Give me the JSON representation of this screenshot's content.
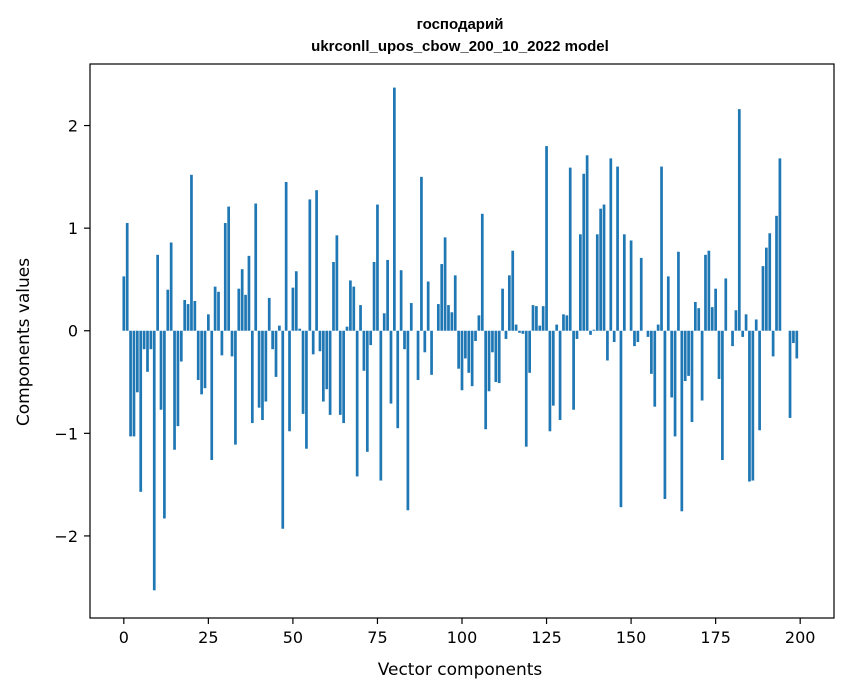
{
  "chart_data": {
    "type": "bar",
    "title_lines": [
      "господарий",
      "ukrconll_upos_cbow_200_10_2022 model"
    ],
    "xlabel": "Vector components",
    "ylabel": "Components values",
    "xlim": [
      -10,
      210
    ],
    "ylim": [
      -2.8,
      2.6
    ],
    "xticks": [
      0,
      25,
      50,
      75,
      100,
      125,
      150,
      175,
      200
    ],
    "xtick_labels": [
      "0",
      "25",
      "50",
      "75",
      "100",
      "125",
      "150",
      "175",
      "200"
    ],
    "yticks": [
      -2,
      -1,
      0,
      1,
      2
    ],
    "ytick_labels": [
      "−2",
      "−1",
      "0",
      "1",
      "2"
    ],
    "grid": false,
    "bar_color": "#1f77b4",
    "values": [
      0.53,
      1.05,
      -1.03,
      -1.03,
      -0.6,
      -1.57,
      -0.18,
      -0.4,
      -0.18,
      -2.53,
      0.74,
      -0.77,
      -1.83,
      0.4,
      0.86,
      -1.16,
      -0.93,
      -0.3,
      0.3,
      0.26,
      1.52,
      0.29,
      -0.48,
      -0.62,
      -0.56,
      0.16,
      -1.26,
      0.43,
      0.38,
      -0.24,
      1.05,
      1.21,
      -0.25,
      -1.11,
      0.41,
      0.6,
      0.35,
      0.73,
      -0.9,
      1.24,
      -0.75,
      -0.87,
      -0.69,
      0.32,
      -0.18,
      -0.45,
      0.05,
      -1.93,
      1.45,
      -0.98,
      0.42,
      0.58,
      0.02,
      -0.81,
      -1.15,
      1.28,
      -0.23,
      1.37,
      -0.2,
      -0.69,
      -0.57,
      -0.82,
      0.67,
      0.93,
      -0.82,
      -0.9,
      0.04,
      0.49,
      0.43,
      -1.42,
      0.25,
      -0.39,
      -1.18,
      -0.14,
      0.67,
      1.23,
      -1.46,
      0.17,
      0.69,
      -0.71,
      2.37,
      -0.95,
      0.59,
      -0.18,
      -1.75,
      0.27,
      0.0,
      -0.48,
      1.5,
      -0.21,
      0.48,
      -0.43,
      0.0,
      0.26,
      0.65,
      0.91,
      0.25,
      0.18,
      0.54,
      -0.37,
      -0.58,
      -0.27,
      -0.41,
      -0.54,
      -0.1,
      0.15,
      1.14,
      -0.96,
      -0.59,
      -0.21,
      -0.5,
      -0.51,
      0.41,
      -0.08,
      0.54,
      0.78,
      0.06,
      -0.02,
      -0.03,
      -1.13,
      -0.41,
      0.25,
      0.24,
      0.05,
      0.24,
      1.8,
      -0.98,
      -0.73,
      0.06,
      -0.87,
      0.16,
      0.15,
      1.59,
      -0.77,
      -0.08,
      0.94,
      1.53,
      1.71,
      -0.04,
      0.01,
      0.94,
      1.19,
      1.23,
      -0.29,
      1.68,
      -0.11,
      1.6,
      -1.72,
      0.94,
      0.0,
      0.88,
      -0.15,
      -0.11,
      0.71,
      0.0,
      -0.06,
      -0.42,
      -0.74,
      0.06,
      1.6,
      -1.64,
      0.53,
      -0.65,
      -1.03,
      0.77,
      -1.76,
      -0.49,
      -0.44,
      -0.89,
      0.28,
      0.22,
      -0.68,
      0.74,
      0.78,
      0.23,
      0.41,
      -0.47,
      -1.26,
      0.51,
      0.0,
      -0.15,
      0.2,
      2.16,
      -0.06,
      0.16,
      -1.47,
      -1.46,
      0.11,
      -0.97,
      0.63,
      0.81,
      0.95,
      -0.25,
      1.12,
      1.68,
      0.0,
      0.0,
      -0.85,
      -0.12,
      -0.27
    ]
  }
}
